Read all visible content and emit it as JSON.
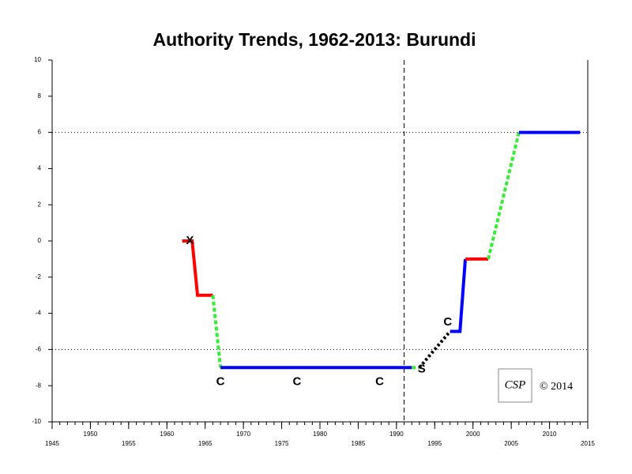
{
  "chart_data": {
    "type": "line",
    "title": "Authority Trends, 1962-2013: Burundi",
    "xlim": [
      1945,
      2015
    ],
    "xticks": [
      1945,
      1950,
      1955,
      1960,
      1965,
      1970,
      1975,
      1980,
      1985,
      1990,
      1995,
      2000,
      2005,
      2010,
      2015
    ],
    "ylim": [
      -10,
      10
    ],
    "yticks": [
      -10,
      -8,
      -6,
      -4,
      -2,
      0,
      2,
      4,
      6,
      8,
      10
    ],
    "hlines": [
      6,
      -6
    ],
    "vlines": [
      1991
    ],
    "series": [
      {
        "color": "#ff0000",
        "dash": "solid",
        "x": [
          1962,
          1963.3,
          1964,
          1966
        ],
        "values": [
          0,
          0,
          -3,
          -3
        ]
      },
      {
        "color": "#33ee33",
        "dash": "dashed",
        "x": [
          1966,
          1967
        ],
        "values": [
          -3,
          -7
        ]
      },
      {
        "color": "#0000ff",
        "dash": "solid",
        "x": [
          1967,
          1992
        ],
        "values": [
          -7,
          -7
        ]
      },
      {
        "color": "#33ee33",
        "dash": "dashed",
        "x": [
          1992,
          1993
        ],
        "values": [
          -7,
          -7
        ]
      },
      {
        "color": "#000000",
        "dash": "dotted",
        "x": [
          1993,
          1997
        ],
        "values": [
          -7,
          -5
        ]
      },
      {
        "color": "#0000ff",
        "dash": "solid",
        "x": [
          1997,
          1998.3,
          1999
        ],
        "values": [
          -5,
          -5,
          -1
        ]
      },
      {
        "color": "#ff0000",
        "dash": "solid",
        "x": [
          1999,
          2002
        ],
        "values": [
          -1,
          -1
        ]
      },
      {
        "color": "#33ee33",
        "dash": "dashed",
        "x": [
          2002,
          2006
        ],
        "values": [
          -1,
          6
        ]
      },
      {
        "color": "#0000ff",
        "dash": "solid",
        "x": [
          2006,
          2014
        ],
        "values": [
          6,
          6
        ]
      }
    ],
    "annotations": [
      {
        "text": "X",
        "x": 1963,
        "y": 0
      },
      {
        "text": "C",
        "x": 1967,
        "y": -7.8
      },
      {
        "text": "C",
        "x": 1977,
        "y": -7.8
      },
      {
        "text": "C",
        "x": 1987.8,
        "y": -7.8
      },
      {
        "text": "S",
        "x": 1993.3,
        "y": -7.1
      },
      {
        "text": "C",
        "x": 1996.7,
        "y": -4.5
      }
    ],
    "logo": "CSP",
    "copyright": "© 2014"
  }
}
